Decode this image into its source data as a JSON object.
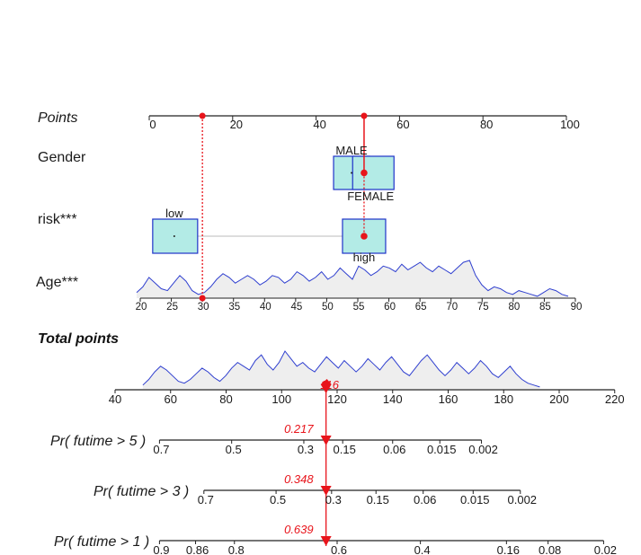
{
  "chart_data": {
    "type": "nomogram",
    "colors": {
      "accent": "#e8141b",
      "box_fill": "#b3ebe6",
      "box_stroke": "#1f33c9",
      "density_stroke": "#2f3fcf",
      "density_fill": "#eeeeee"
    },
    "points_axis": {
      "label": "Points",
      "ticks": [
        0,
        20,
        40,
        60,
        80,
        100
      ]
    },
    "gender": {
      "label": "Gender",
      "levels": [
        {
          "name": "MALE",
          "points": 48.5
        },
        {
          "name": "FEMALE",
          "points": 53.5
        }
      ],
      "selected_points": 51.5
    },
    "risk": {
      "label": "risk***",
      "levels": [
        {
          "name": "low",
          "points": 6
        },
        {
          "name": "high",
          "points": 51.5
        }
      ],
      "selected_points": 51.5
    },
    "age": {
      "label": "Age***",
      "ticks": [
        20,
        25,
        30,
        35,
        40,
        45,
        50,
        55,
        60,
        65,
        70,
        75,
        80,
        85,
        90
      ],
      "density": [
        0.15,
        0.3,
        0.55,
        0.4,
        0.25,
        0.2,
        0.4,
        0.6,
        0.45,
        0.2,
        0.1,
        0.15,
        0.3,
        0.5,
        0.65,
        0.55,
        0.4,
        0.5,
        0.6,
        0.5,
        0.35,
        0.45,
        0.6,
        0.55,
        0.4,
        0.5,
        0.7,
        0.6,
        0.45,
        0.55,
        0.7,
        0.5,
        0.6,
        0.8,
        0.65,
        0.5,
        0.85,
        0.75,
        0.6,
        0.7,
        0.85,
        0.8,
        0.7,
        0.9,
        0.75,
        0.85,
        0.95,
        0.8,
        0.7,
        0.85,
        0.75,
        0.65,
        0.8,
        0.95,
        1.0,
        0.6,
        0.35,
        0.2,
        0.3,
        0.25,
        0.15,
        0.1,
        0.2,
        0.15,
        0.1,
        0.05,
        0.15,
        0.25,
        0.2,
        0.1,
        0.05
      ],
      "selected_value": 30
    },
    "total_points": {
      "label": "Total points",
      "ticks": [
        40,
        60,
        80,
        100,
        120,
        140,
        160,
        180,
        200,
        220
      ],
      "density": [
        0.1,
        0.25,
        0.45,
        0.6,
        0.5,
        0.35,
        0.2,
        0.15,
        0.25,
        0.4,
        0.55,
        0.45,
        0.3,
        0.2,
        0.35,
        0.55,
        0.7,
        0.6,
        0.5,
        0.75,
        0.9,
        0.65,
        0.5,
        0.7,
        1.0,
        0.8,
        0.6,
        0.7,
        0.55,
        0.45,
        0.65,
        0.85,
        0.7,
        0.55,
        0.75,
        0.6,
        0.45,
        0.6,
        0.8,
        0.65,
        0.5,
        0.7,
        0.85,
        0.65,
        0.45,
        0.35,
        0.55,
        0.75,
        0.9,
        0.7,
        0.5,
        0.35,
        0.5,
        0.7,
        0.55,
        0.4,
        0.55,
        0.75,
        0.6,
        0.4,
        0.3,
        0.45,
        0.6,
        0.4,
        0.25,
        0.15,
        0.1,
        0.05
      ],
      "selected_value": 116,
      "selected_label": "116"
    },
    "probabilities": [
      {
        "label": "Pr( futime > 5 )",
        "ticks": [
          "0.7",
          "0.5",
          "0.3",
          "0.15",
          "0.06",
          "0.015",
          "0.002"
        ],
        "tick_total_points": [
          56,
          82,
          108,
          122,
          140,
          157,
          172
        ],
        "value": 0.217,
        "value_label": "0.217"
      },
      {
        "label": "Pr( futime > 3 )",
        "ticks": [
          "0.7",
          "0.5",
          "0.3",
          "0.15",
          "0.06",
          "0.015",
          "0.002"
        ],
        "tick_total_points": [
          72,
          98,
          118,
          134,
          151,
          169,
          186
        ],
        "value": 0.348,
        "value_label": "0.348"
      },
      {
        "label": "Pr( futime > 1 )",
        "ticks": [
          "0.9",
          "0.86",
          "0.8",
          "0.6",
          "0.4",
          "0.16",
          "0.08",
          "0.02"
        ],
        "tick_total_points": [
          56,
          69,
          83,
          120,
          150,
          181,
          196,
          216
        ],
        "value": 0.639,
        "value_label": "0.639"
      }
    ]
  }
}
